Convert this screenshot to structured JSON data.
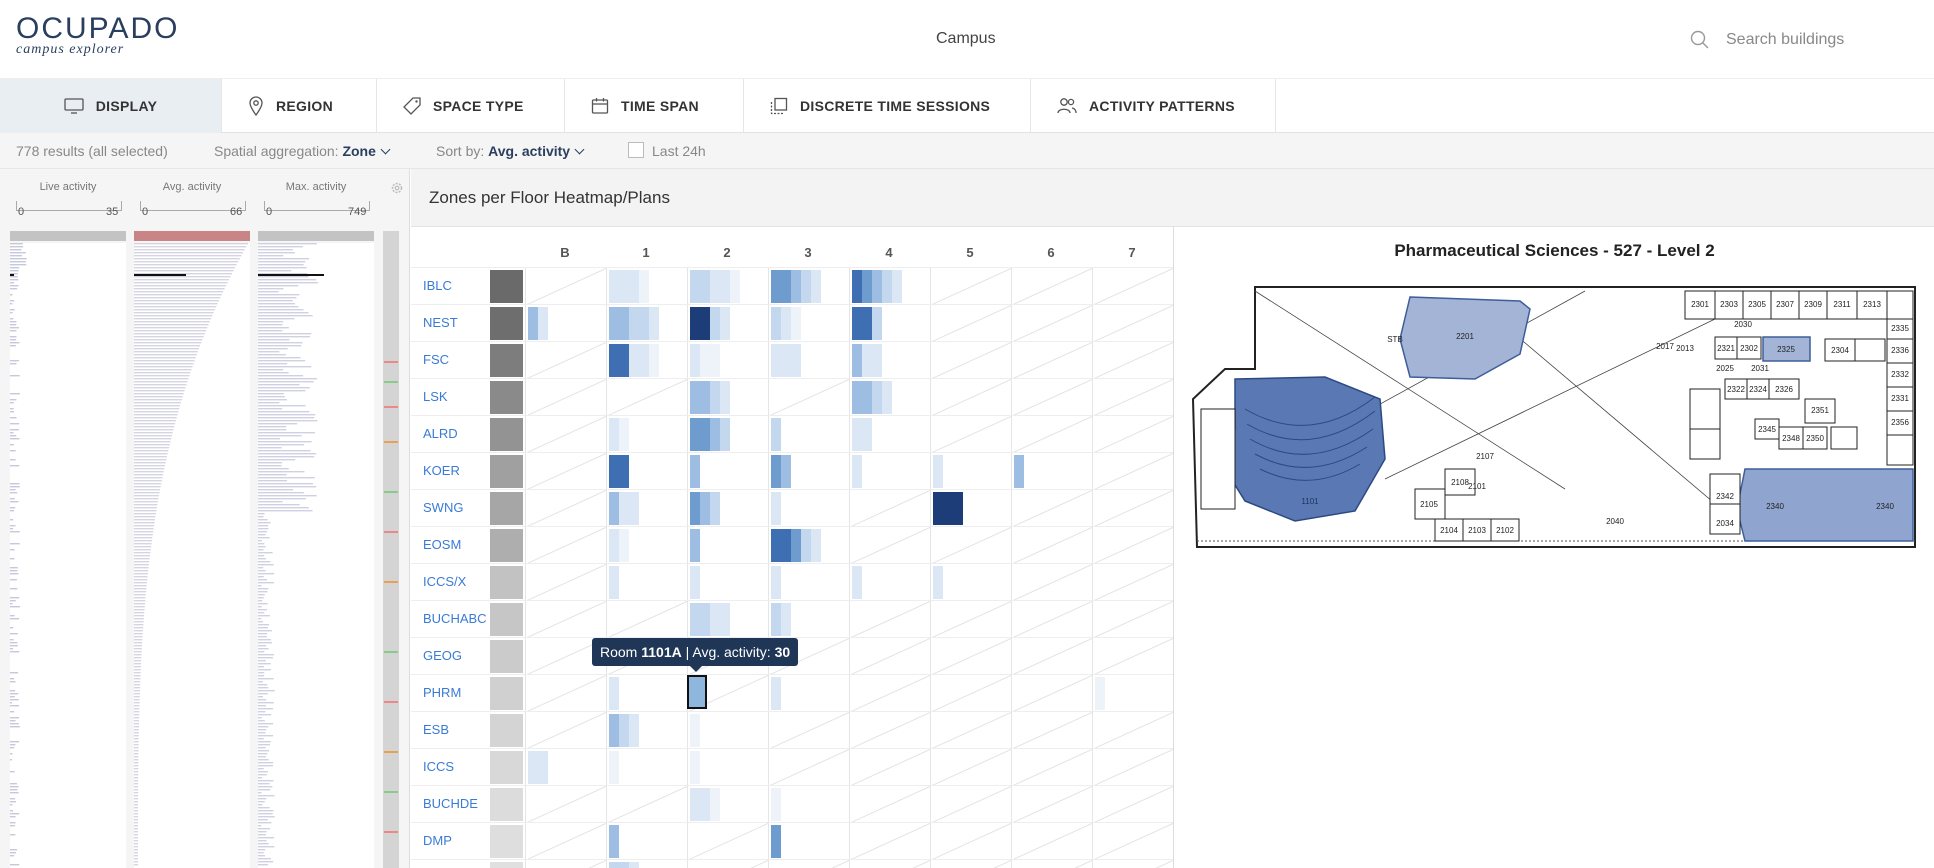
{
  "app": {
    "logo_title": "OCUPADO",
    "logo_subtitle": "campus explorer",
    "context": "Campus"
  },
  "search": {
    "placeholder": "Search buildings"
  },
  "tabs": [
    {
      "label": "DISPLAY",
      "icon": "monitor-icon",
      "active": true
    },
    {
      "label": "REGION",
      "icon": "pin-icon"
    },
    {
      "label": "SPACE TYPE",
      "icon": "tag-icon"
    },
    {
      "label": "TIME SPAN",
      "icon": "calendar-icon"
    },
    {
      "label": "DISCRETE TIME SESSIONS",
      "icon": "sessions-icon"
    },
    {
      "label": "ACTIVITY PATTERNS",
      "icon": "people-icon"
    }
  ],
  "filters": {
    "results": "778 results (all selected)",
    "aggregation_label": "Spatial aggregation:",
    "aggregation_value": "Zone",
    "sort_label": "Sort by:",
    "sort_value": "Avg. activity",
    "last24_label": "Last 24h",
    "last24_checked": false
  },
  "side_columns": [
    {
      "label": "Live activity",
      "min": "0",
      "max": "35",
      "bar_color": "#c3c3c3"
    },
    {
      "label": "Avg. activity",
      "min": "0",
      "max": "66",
      "bar_color": "#c98585"
    },
    {
      "label": "Max. activity",
      "min": "0",
      "max": "749",
      "bar_color": "#c3c3c3"
    }
  ],
  "main": {
    "title": "Zones per Floor Heatmap/Plans"
  },
  "heatmap": {
    "columns": [
      "B",
      "1",
      "2",
      "3",
      "4",
      "5",
      "6",
      "7"
    ],
    "rows": [
      {
        "building": "IBLC",
        "swatch": "#6a6a6a"
      },
      {
        "building": "NEST",
        "swatch": "#6e6e6e"
      },
      {
        "building": "FSC",
        "swatch": "#7d7d7d"
      },
      {
        "building": "LSK",
        "swatch": "#8a8a8a"
      },
      {
        "building": "ALRD",
        "swatch": "#939393"
      },
      {
        "building": "KOER",
        "swatch": "#a0a0a0"
      },
      {
        "building": "SWNG",
        "swatch": "#a6a6a6"
      },
      {
        "building": "EOSM",
        "swatch": "#aeaeae"
      },
      {
        "building": "ICCS/X",
        "swatch": "#c2c2c2"
      },
      {
        "building": "BUCHABC",
        "swatch": "#c6c6c6"
      },
      {
        "building": "GEOG",
        "swatch": "#cbcbcb"
      },
      {
        "building": "PHRM",
        "swatch": "#d0d0d0"
      },
      {
        "building": "ESB",
        "swatch": "#d4d4d4"
      },
      {
        "building": "ICCS",
        "swatch": "#d8d8d8"
      },
      {
        "building": "BUCHDE",
        "swatch": "#dcdcdc"
      },
      {
        "building": "DMP",
        "swatch": "#dedede"
      },
      {
        "building": "",
        "swatch": "#e0e0e0"
      }
    ],
    "tooltip": {
      "prefix": "Room ",
      "room": "1101A",
      "mid": " | Avg. activity: ",
      "value": "30"
    }
  },
  "floorplan": {
    "title": "Pharmaceutical Sciences - 527 - Level 2",
    "room_labels": [
      "2201",
      "2325",
      "2340",
      "2340",
      "1101",
      "2301",
      "2303",
      "2305",
      "2307",
      "2309",
      "2311",
      "2313",
      "2335",
      "2336",
      "2304",
      "2321",
      "2302",
      "2331",
      "2332",
      "2326",
      "2322",
      "2324",
      "2351",
      "2345",
      "2348",
      "2350",
      "2356",
      "2342",
      "2105",
      "2104",
      "2103",
      "2102",
      "2101",
      "2108",
      "2107",
      "2040",
      "2034",
      "2030",
      "2031",
      "2025",
      "2017",
      "2013"
    ]
  }
}
